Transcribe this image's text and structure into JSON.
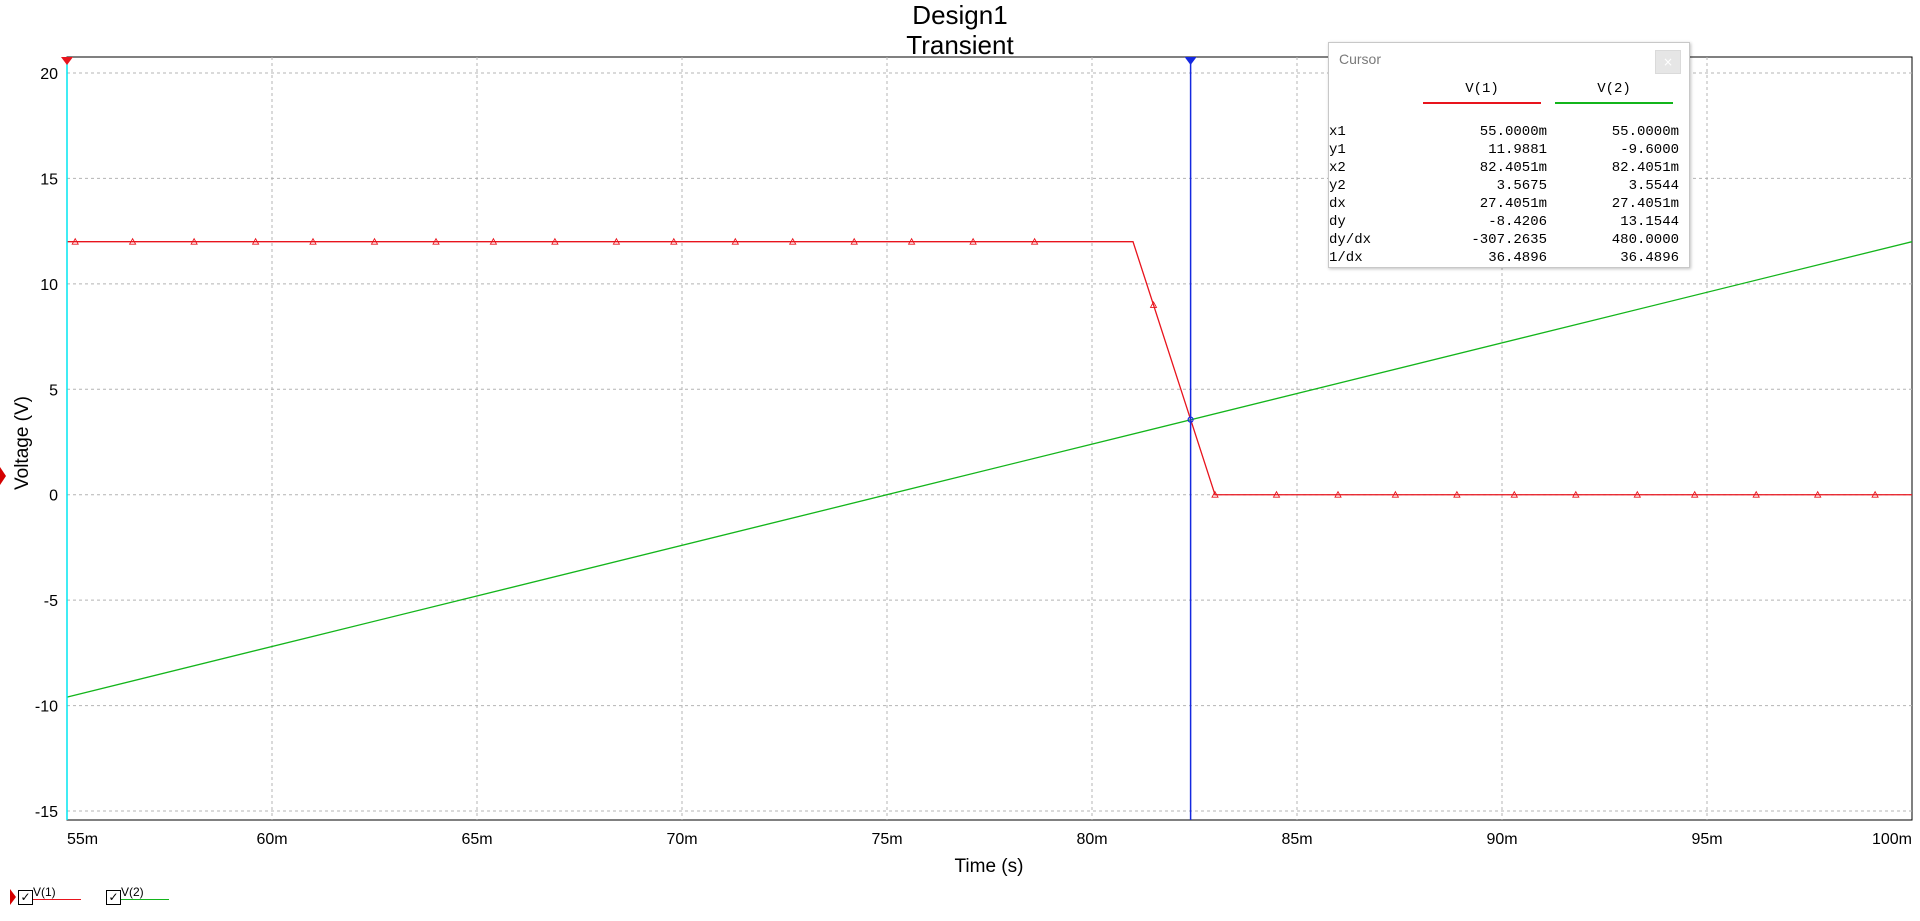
{
  "chart_data": {
    "type": "line",
    "title": "Design1",
    "subtitle": "Transient",
    "xlabel": "Time (s)",
    "ylabel": "Voltage (V)",
    "xlim": [
      55,
      100
    ],
    "ylim": [
      -15,
      20
    ],
    "grid": true,
    "x_tick_values": [
      55,
      60,
      65,
      70,
      75,
      80,
      85,
      90,
      95,
      100
    ],
    "x_tick_labels": [
      "55m",
      "60m",
      "65m",
      "70m",
      "75m",
      "80m",
      "85m",
      "90m",
      "95m",
      "100m"
    ],
    "y_tick_values": [
      20,
      15,
      10,
      5,
      0,
      -5,
      -10,
      -15
    ],
    "y_tick_labels": [
      "20",
      "15",
      "10",
      "5",
      "0",
      "-5",
      "-10",
      "-15"
    ],
    "series": [
      {
        "name": "V(1)",
        "color": "#e8141d",
        "x": [
          55,
          81,
          83,
          100
        ],
        "y": [
          12,
          12,
          0,
          0
        ],
        "markers_x": [
          55.2,
          56.6,
          58.1,
          59.6,
          61.0,
          62.5,
          64.0,
          65.4,
          66.9,
          68.4,
          69.8,
          71.3,
          72.7,
          74.2,
          75.6,
          77.1,
          78.6,
          81.5,
          83.0,
          84.5,
          86.0,
          87.4,
          88.9,
          90.3,
          91.8,
          93.3,
          94.7,
          96.2,
          97.7,
          99.1
        ]
      },
      {
        "name": "V(2)",
        "color": "#13b51b",
        "x": [
          55,
          100
        ],
        "y": [
          -9.6,
          12
        ]
      }
    ],
    "cursors": [
      {
        "name": "cursor-1",
        "x": 55.0,
        "color": "#00e5f0",
        "label": "1"
      },
      {
        "name": "cursor-2",
        "x": 82.4051,
        "color": "#1428e0",
        "label": "2"
      }
    ]
  },
  "cursor_panel": {
    "title": "Cursor",
    "close_glyph": "×",
    "columns": [
      {
        "label": "V(1)",
        "color": "#e8141d"
      },
      {
        "label": "V(2)",
        "color": "#13b51b"
      }
    ],
    "rows": [
      {
        "label": "x1",
        "v1": "55.0000m",
        "v2": "55.0000m"
      },
      {
        "label": "y1",
        "v1": "11.9881",
        "v2": "-9.6000"
      },
      {
        "label": "x2",
        "v1": "82.4051m",
        "v2": "82.4051m"
      },
      {
        "label": "y2",
        "v1": "3.5675",
        "v2": "3.5544"
      },
      {
        "label": "dx",
        "v1": "27.4051m",
        "v2": "27.4051m"
      },
      {
        "label": "dy",
        "v1": "-8.4206",
        "v2": "13.1544"
      },
      {
        "label": "dy/dx",
        "v1": "-307.2635",
        "v2": "480.0000"
      },
      {
        "label": "1/dx",
        "v1": "36.4896",
        "v2": "36.4896"
      }
    ]
  },
  "legend": {
    "items": [
      {
        "label": "V(1)",
        "color": "#e8141d",
        "checked": "☑"
      },
      {
        "label": "V(2)",
        "color": "#13b51b",
        "checked": "☑"
      }
    ],
    "check_glyph": "✓"
  }
}
